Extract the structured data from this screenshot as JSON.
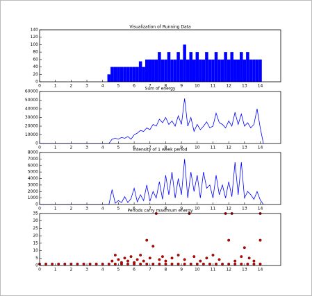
{
  "chart_data": [
    {
      "type": "bar",
      "title": "Visualization of Running Data",
      "color": "#0000ff",
      "x": [
        4.4,
        4.6,
        4.8,
        5.0,
        5.2,
        5.4,
        5.6,
        5.8,
        6.0,
        6.2,
        6.4,
        6.6,
        6.8,
        7.0,
        7.2,
        7.4,
        7.6,
        7.8,
        8.0,
        8.2,
        8.4,
        8.6,
        8.8,
        9.0,
        9.2,
        9.4,
        9.6,
        9.8,
        10.0,
        10.2,
        10.4,
        10.6,
        10.8,
        11.0,
        11.2,
        11.4,
        11.6,
        11.8,
        12.0,
        12.2,
        12.4,
        12.6,
        12.8,
        13.0,
        13.2,
        13.4,
        13.6,
        13.8,
        14.0
      ],
      "values": [
        20,
        40,
        40,
        40,
        40,
        40,
        40,
        40,
        40,
        40,
        55,
        40,
        60,
        60,
        60,
        60,
        80,
        60,
        60,
        80,
        60,
        60,
        80,
        60,
        100,
        60,
        80,
        60,
        80,
        60,
        60,
        80,
        60,
        60,
        80,
        60,
        60,
        80,
        60,
        80,
        60,
        60,
        80,
        60,
        80,
        60,
        60,
        60,
        60
      ],
      "xlim": [
        0,
        15.3
      ],
      "xticks": [
        0,
        1,
        2,
        3,
        4,
        5,
        6,
        7,
        8,
        9,
        10,
        11,
        12,
        13,
        14
      ],
      "ylim": [
        0,
        140
      ],
      "yticks": [
        0,
        20,
        40,
        60,
        80,
        100,
        120,
        140
      ]
    },
    {
      "type": "line",
      "title": "Sum of energy",
      "color": "#0000ff",
      "x": [
        0,
        4.4,
        4.6,
        4.8,
        5.0,
        5.2,
        5.4,
        5.6,
        5.8,
        6.0,
        6.2,
        6.4,
        6.6,
        6.8,
        7.0,
        7.2,
        7.4,
        7.6,
        7.8,
        8.0,
        8.2,
        8.4,
        8.6,
        8.8,
        9.0,
        9.2,
        9.4,
        9.6,
        9.8,
        10.0,
        10.2,
        10.4,
        10.6,
        10.8,
        11.0,
        11.2,
        11.4,
        11.6,
        11.8,
        12.0,
        12.2,
        12.4,
        12.6,
        12.8,
        13.0,
        13.2,
        13.4,
        13.6,
        13.8,
        14.0,
        14.2
      ],
      "values": [
        0,
        0,
        5000,
        6000,
        5000,
        7000,
        6000,
        8000,
        5000,
        10000,
        12000,
        15000,
        14000,
        18000,
        16000,
        22000,
        20000,
        28000,
        24000,
        30000,
        22000,
        26000,
        20000,
        32000,
        22000,
        52000,
        20000,
        30000,
        14000,
        22000,
        16000,
        20000,
        25000,
        18000,
        20000,
        35000,
        24000,
        22000,
        18000,
        26000,
        20000,
        36000,
        22000,
        34000,
        20000,
        24000,
        18000,
        22000,
        40000,
        18000,
        0
      ],
      "xlim": [
        0,
        15.3
      ],
      "xticks": [
        0,
        1,
        2,
        3,
        4,
        5,
        6,
        7,
        8,
        9,
        10,
        11,
        12,
        13,
        14
      ],
      "ylim": [
        0,
        60000
      ],
      "yticks": [
        0,
        10000,
        20000,
        30000,
        40000,
        50000,
        60000
      ]
    },
    {
      "type": "line",
      "title": "Intensity of 1 week period",
      "color": "#0000ff",
      "x": [
        0,
        4.4,
        4.6,
        4.8,
        5.0,
        5.2,
        5.4,
        5.6,
        5.8,
        6.0,
        6.2,
        6.4,
        6.6,
        6.8,
        7.0,
        7.2,
        7.4,
        7.6,
        7.8,
        8.0,
        8.2,
        8.4,
        8.6,
        8.8,
        9.0,
        9.2,
        9.4,
        9.6,
        9.8,
        10.0,
        10.2,
        10.4,
        10.6,
        10.8,
        11.0,
        11.2,
        11.4,
        11.6,
        11.8,
        12.0,
        12.2,
        12.4,
        12.6,
        12.8,
        13.0,
        13.2,
        13.4,
        13.6,
        13.8,
        14.0,
        14.2
      ],
      "values": [
        0,
        0,
        2300,
        200,
        600,
        300,
        1200,
        300,
        900,
        2500,
        400,
        1500,
        600,
        3000,
        500,
        2000,
        1000,
        3500,
        800,
        4500,
        1500,
        5000,
        1000,
        4000,
        1500,
        7000,
        1000,
        5000,
        2000,
        4500,
        1000,
        5000,
        2500,
        3000,
        1000,
        4500,
        1500,
        3000,
        1000,
        3500,
        1200,
        6500,
        1500,
        6500,
        1000,
        2000,
        1500,
        800,
        2000,
        700,
        0
      ],
      "xlim": [
        0,
        15.3
      ],
      "xticks": [
        0,
        1,
        2,
        3,
        4,
        5,
        6,
        7,
        8,
        9,
        10,
        11,
        12,
        13,
        14
      ],
      "ylim": [
        0,
        8000
      ],
      "yticks": [
        0,
        1000,
        2000,
        3000,
        4000,
        5000,
        6000,
        7000,
        8000
      ]
    },
    {
      "type": "scatter",
      "title": "Periods carry maximum energy",
      "color": "#cc0000",
      "x": [
        0,
        0.4,
        0.8,
        1.2,
        1.6,
        2.0,
        2.4,
        2.8,
        3.2,
        3.6,
        4.0,
        4.4,
        4.8,
        5.2,
        5.6,
        6.0,
        6.4,
        6.8,
        7.2,
        7.6,
        8.0,
        8.4,
        8.8,
        9.2,
        9.6,
        10.0,
        10.4,
        10.8,
        11.2,
        11.6,
        12.0,
        12.4,
        12.8,
        13.2,
        13.6,
        14.0,
        4.6,
        4.8,
        5.0,
        5.2,
        5.4,
        5.6,
        5.8,
        6.0,
        6.2,
        6.4,
        6.6,
        6.8,
        7.0,
        7.2,
        7.4,
        7.6,
        7.8,
        8.0,
        8.4,
        8.8,
        9.2,
        9.5,
        9.8,
        10.2,
        10.6,
        11.0,
        11.4,
        11.8,
        12.0,
        12.2,
        12.4,
        12.8,
        13.0,
        13.3,
        13.6,
        14.0,
        14.0
      ],
      "values": [
        1,
        1,
        1,
        1,
        1,
        1,
        1,
        1,
        1,
        1,
        1,
        1,
        1,
        1,
        1,
        1,
        1,
        1,
        1,
        1,
        1,
        1,
        1,
        1,
        1,
        1,
        1,
        1,
        1,
        1,
        1,
        1,
        1,
        1,
        1,
        1,
        3,
        7,
        4,
        2,
        5,
        3,
        6,
        2,
        4,
        7,
        3,
        17,
        5,
        13,
        35,
        4,
        6,
        3,
        5,
        7,
        4,
        35,
        6,
        3,
        5,
        7,
        4,
        35,
        17,
        35,
        3,
        6,
        12,
        5,
        3,
        35,
        17
      ],
      "xlim": [
        0,
        15.3
      ],
      "xticks": [
        0,
        1,
        2,
        3,
        4,
        5,
        6,
        7,
        8,
        9,
        10,
        11,
        12,
        13,
        14
      ],
      "ylim": [
        0,
        35
      ],
      "yticks": [
        0,
        5,
        10,
        15,
        20,
        25,
        30,
        35
      ]
    }
  ]
}
